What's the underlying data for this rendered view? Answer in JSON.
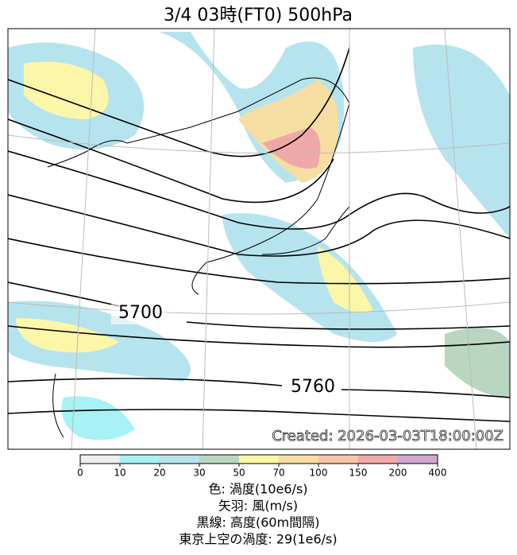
{
  "title": "3/4  03時(FT0)     500hPa",
  "contour_labels": [
    "5700",
    "5760"
  ],
  "created": "Created: 2026-03-03T18:00:00Z",
  "colorbar": {
    "ticks": [
      0,
      10,
      20,
      30,
      50,
      70,
      100,
      150,
      200,
      400
    ],
    "colors": [
      "#eeeeee",
      "#a6f2f6",
      "#b6e4ee",
      "#b9d6c0",
      "#fbf6a8",
      "#f6dea2",
      "#f7c6a6",
      "#efa8a8",
      "#cfa7cf"
    ]
  },
  "legend": [
    "色: 渦度(10e6/s)",
    "矢羽: 風(m/s)",
    "黒線: 高度(60m間隔)",
    "東京上空の渦度: 29(1e6/s)"
  ]
}
